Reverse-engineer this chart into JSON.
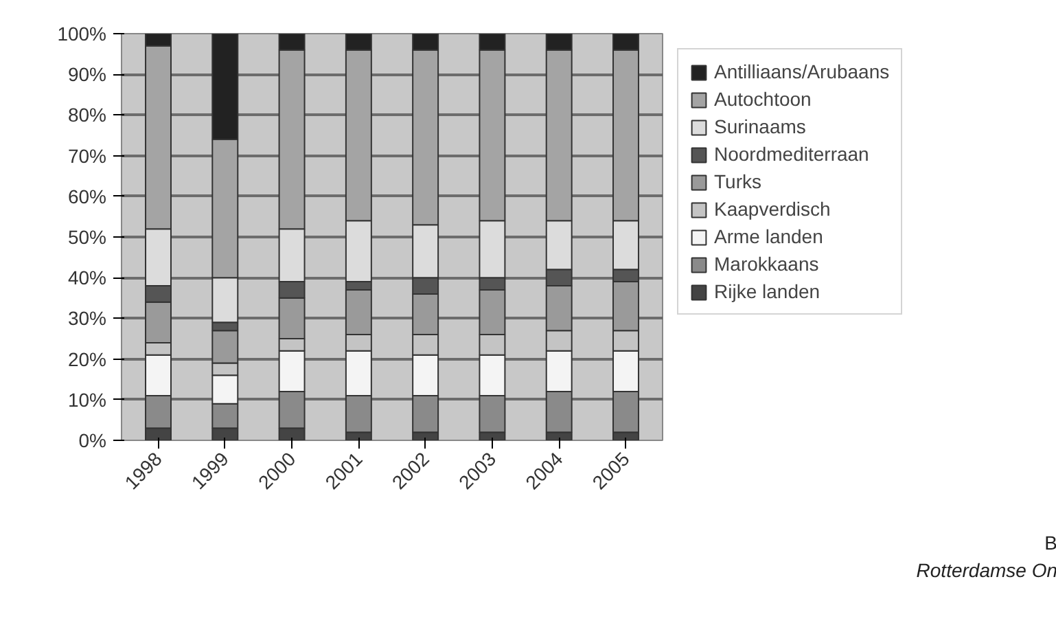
{
  "chart_data": {
    "type": "bar",
    "stacked": true,
    "categories": [
      "1998",
      "1999",
      "2000",
      "2001",
      "2002",
      "2003",
      "2004",
      "2005"
    ],
    "series": [
      {
        "name": "Rijke landen",
        "color": "#444444",
        "values": [
          3,
          3,
          3,
          2,
          2,
          2,
          2,
          2
        ]
      },
      {
        "name": "Marokkaans",
        "color": "#8a8a8a",
        "values": [
          8,
          6,
          9,
          9,
          9,
          9,
          10,
          10
        ]
      },
      {
        "name": "Arme landen",
        "color": "#f4f4f4",
        "values": [
          10,
          7,
          10,
          11,
          10,
          10,
          10,
          10
        ]
      },
      {
        "name": "Kaapverdisch",
        "color": "#c4c4c4",
        "values": [
          3,
          3,
          3,
          4,
          5,
          5,
          5,
          5
        ]
      },
      {
        "name": "Turks",
        "color": "#9a9a9a",
        "values": [
          10,
          8,
          10,
          11,
          10,
          11,
          11,
          12
        ]
      },
      {
        "name": "Noordmediterraan",
        "color": "#555555",
        "values": [
          4,
          2,
          4,
          2,
          4,
          3,
          4,
          3
        ]
      },
      {
        "name": "Surinaams",
        "color": "#dcdcdc",
        "values": [
          14,
          11,
          13,
          15,
          13,
          14,
          12,
          12
        ]
      },
      {
        "name": "Autochtoon",
        "color": "#a4a4a4",
        "values": [
          45,
          34,
          44,
          42,
          43,
          42,
          42,
          42
        ]
      },
      {
        "name": "Antilliaans/Arubaans",
        "color": "#222222",
        "values": [
          3,
          26,
          4,
          4,
          4,
          4,
          4,
          4
        ]
      }
    ],
    "ylim": [
      0,
      100
    ],
    "yticks": [
      {
        "value": 0,
        "label": "0%"
      },
      {
        "value": 10,
        "label": "10%"
      },
      {
        "value": 20,
        "label": "20%"
      },
      {
        "value": 30,
        "label": "30%"
      },
      {
        "value": 40,
        "label": "40%"
      },
      {
        "value": 50,
        "label": "50%"
      },
      {
        "value": 60,
        "label": "60%"
      },
      {
        "value": 70,
        "label": "70%"
      },
      {
        "value": 80,
        "label": "80%"
      },
      {
        "value": 90,
        "label": "90%"
      },
      {
        "value": 100,
        "label": "100%"
      }
    ],
    "grid": "y",
    "legend": "right",
    "annotations": [
      "B",
      "Rotterdamse On"
    ]
  }
}
